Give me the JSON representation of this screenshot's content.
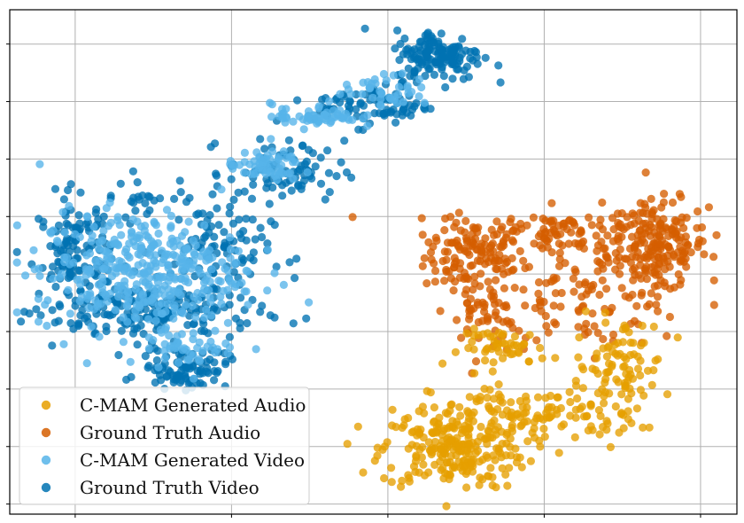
{
  "chart_data": {
    "type": "scatter",
    "title": "",
    "xlabel": "",
    "ylabel": "",
    "xlim": [
      0,
      100
    ],
    "ylim": [
      0,
      100
    ],
    "grid": true,
    "legend_placement": "bottom-left",
    "x_grid_values": [
      9,
      30.5,
      52,
      73.5,
      95
    ],
    "y_grid_values": [
      2,
      13.4,
      24.8,
      36.2,
      47.6,
      59,
      70.4,
      81.8,
      93.2
    ],
    "series": [
      {
        "name": "C-MAM Generated Audio",
        "color": "#E69F00",
        "clusters": [
          {
            "cx": 61,
            "cy": 13,
            "sx": 5,
            "sy": 4,
            "n": 240
          },
          {
            "cx": 72,
            "cy": 20,
            "sx": 7,
            "sy": 3,
            "n": 120
          },
          {
            "cx": 84,
            "cy": 29,
            "sx": 3,
            "sy": 5,
            "n": 90
          },
          {
            "cx": 68,
            "cy": 33,
            "sx": 3,
            "sy": 1.8,
            "n": 50
          }
        ]
      },
      {
        "name": "Ground Truth Audio",
        "color": "#D55E00",
        "clusters": [
          {
            "cx": 64,
            "cy": 51,
            "sx": 3.5,
            "sy": 3.5,
            "n": 120
          },
          {
            "cx": 75,
            "cy": 56,
            "sx": 8,
            "sy": 2.5,
            "n": 110
          },
          {
            "cx": 89,
            "cy": 53,
            "sx": 3.5,
            "sy": 4.5,
            "n": 180
          },
          {
            "cx": 80,
            "cy": 43,
            "sx": 7,
            "sy": 5,
            "n": 110
          },
          {
            "cx": 65,
            "cy": 40,
            "sx": 2.5,
            "sy": 3,
            "n": 50
          }
        ]
      },
      {
        "name": "C-MAM Generated Video",
        "color": "#56B4E9",
        "clusters": [
          {
            "cx": 18,
            "cy": 48,
            "sx": 7,
            "sy": 6,
            "n": 380
          },
          {
            "cx": 35,
            "cy": 69,
            "sx": 2.5,
            "sy": 1.5,
            "n": 60
          },
          {
            "cx": 42,
            "cy": 79,
            "sx": 3,
            "sy": 1.2,
            "n": 60
          },
          {
            "cx": 52,
            "cy": 84,
            "sx": 3,
            "sy": 1.5,
            "n": 40
          },
          {
            "cx": 25,
            "cy": 33,
            "sx": 3,
            "sy": 2,
            "n": 40
          }
        ]
      },
      {
        "name": "Ground Truth Video",
        "color": "#0072B2",
        "clusters": [
          {
            "cx": 9,
            "cy": 51,
            "sx": 2.5,
            "sy": 6,
            "n": 130
          },
          {
            "cx": 20,
            "cy": 40,
            "sx": 7,
            "sy": 3,
            "n": 170
          },
          {
            "cx": 24,
            "cy": 29,
            "sx": 3,
            "sy": 2,
            "n": 90
          },
          {
            "cx": 28,
            "cy": 52,
            "sx": 4,
            "sy": 5,
            "n": 90
          },
          {
            "cx": 38,
            "cy": 68,
            "sx": 4,
            "sy": 3,
            "n": 80
          },
          {
            "cx": 50,
            "cy": 81,
            "sx": 4,
            "sy": 2,
            "n": 80
          },
          {
            "cx": 59,
            "cy": 91,
            "sx": 3,
            "sy": 2.5,
            "n": 150
          },
          {
            "cx": 19,
            "cy": 63,
            "sx": 4,
            "sy": 2,
            "n": 30
          }
        ]
      }
    ]
  }
}
